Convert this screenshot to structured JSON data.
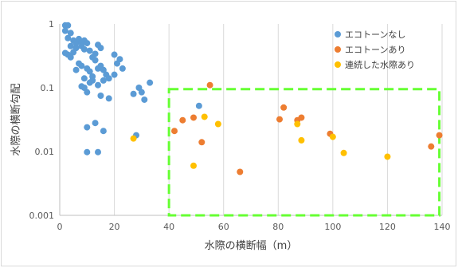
{
  "chart_data": {
    "type": "scatter",
    "xlabel": "水際の横断幅（m）",
    "ylabel": "水際の横断勾配",
    "xlim": [
      0,
      140
    ],
    "ylim": [
      0.001,
      1
    ],
    "y_scale": "log",
    "x_ticks": [
      "0",
      "20",
      "40",
      "60",
      "80",
      "100",
      "120",
      "140"
    ],
    "y_ticks": [
      "0.001",
      "0.01",
      "0.1",
      "1"
    ],
    "grid": "vertical",
    "legend_position": "top-right",
    "series": [
      {
        "name": "エコトーンなし",
        "color": "#5b9bd5",
        "points": [
          [
            2,
            0.95
          ],
          [
            3,
            0.95
          ],
          [
            2,
            0.78
          ],
          [
            4,
            0.72
          ],
          [
            3,
            0.6
          ],
          [
            5,
            0.55
          ],
          [
            6,
            0.5
          ],
          [
            4,
            0.45
          ],
          [
            7,
            0.58
          ],
          [
            8,
            0.52
          ],
          [
            9,
            0.55
          ],
          [
            10,
            0.5
          ],
          [
            6,
            0.42
          ],
          [
            8,
            0.45
          ],
          [
            9,
            0.4
          ],
          [
            2,
            0.35
          ],
          [
            3,
            0.33
          ],
          [
            5,
            0.36
          ],
          [
            4,
            0.3
          ],
          [
            11,
            0.38
          ],
          [
            12,
            0.3
          ],
          [
            13,
            0.27
          ],
          [
            14,
            0.47
          ],
          [
            15,
            0.42
          ],
          [
            13,
            0.34
          ],
          [
            7,
            0.24
          ],
          [
            8,
            0.22
          ],
          [
            10,
            0.2
          ],
          [
            6,
            0.19
          ],
          [
            9,
            0.14
          ],
          [
            11,
            0.18
          ],
          [
            12,
            0.15
          ],
          [
            14,
            0.2
          ],
          [
            15,
            0.22
          ],
          [
            16,
            0.19
          ],
          [
            17,
            0.16
          ],
          [
            11,
            0.12
          ],
          [
            12,
            0.13
          ],
          [
            14,
            0.11
          ],
          [
            16,
            0.13
          ],
          [
            8,
            0.105
          ],
          [
            9,
            0.1
          ],
          [
            10,
            0.085
          ],
          [
            20,
            0.33
          ],
          [
            21,
            0.24
          ],
          [
            22,
            0.28
          ],
          [
            23,
            0.2
          ],
          [
            20,
            0.16
          ],
          [
            18,
            0.14
          ],
          [
            29,
            0.1
          ],
          [
            30,
            0.085
          ],
          [
            31,
            0.065
          ],
          [
            33,
            0.12
          ],
          [
            15,
            0.075
          ],
          [
            18,
            0.068
          ],
          [
            27,
            0.08
          ],
          [
            10,
            0.024
          ],
          [
            13,
            0.028
          ],
          [
            16,
            0.021
          ],
          [
            28,
            0.018
          ],
          [
            10,
            0.0098
          ],
          [
            14,
            0.0098
          ],
          [
            51,
            0.052
          ]
        ]
      },
      {
        "name": "エコトーンあり",
        "color": "#ed7d31",
        "points": [
          [
            55,
            0.11
          ],
          [
            42,
            0.021
          ],
          [
            45,
            0.031
          ],
          [
            49,
            0.034
          ],
          [
            52,
            0.014
          ],
          [
            66,
            0.0048
          ],
          [
            80.5,
            0.032
          ],
          [
            82,
            0.049
          ],
          [
            87,
            0.031
          ],
          [
            88.5,
            0.034
          ],
          [
            99,
            0.019
          ],
          [
            136,
            0.012
          ],
          [
            139,
            0.018
          ]
        ]
      },
      {
        "name": "連続した水際あり",
        "color": "#ffc000",
        "points": [
          [
            27,
            0.016
          ],
          [
            49,
            0.006
          ],
          [
            53,
            0.035
          ],
          [
            58,
            0.027
          ],
          [
            87,
            0.027
          ],
          [
            88.5,
            0.015
          ],
          [
            100,
            0.017
          ],
          [
            104,
            0.0095
          ],
          [
            120,
            0.0083
          ]
        ]
      }
    ],
    "highlight_box": {
      "x": [
        40,
        139
      ],
      "y": [
        0.001,
        0.095
      ],
      "color": "#66ff33",
      "style": "dashed"
    }
  }
}
